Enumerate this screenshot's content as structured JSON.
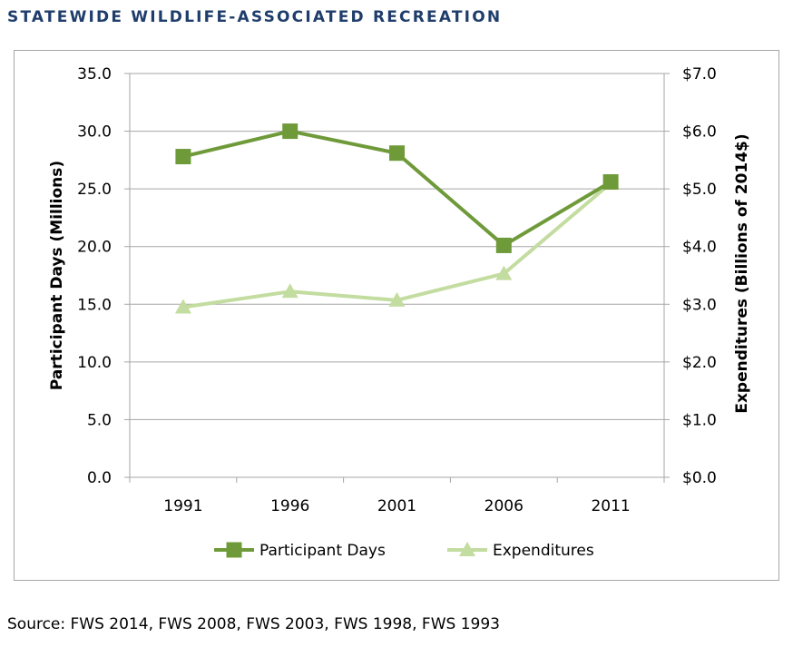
{
  "heading": "STATEWIDE WILDLIFE-ASSOCIATED RECREATION",
  "source": "Source: FWS 2014, FWS 2008, FWS 2003, FWS 1998, FWS 1993",
  "chart_data": {
    "type": "line",
    "title": "",
    "categories": [
      "1991",
      "1996",
      "2001",
      "2006",
      "2011"
    ],
    "ylabel": "Participant Days (Millions)",
    "y2label": "Expenditures (Billions of 2014$)",
    "ylim": [
      0,
      35
    ],
    "y2lim": [
      0,
      7
    ],
    "yticks": [
      "0.0",
      "5.0",
      "10.0",
      "15.0",
      "20.0",
      "25.0",
      "30.0",
      "35.0"
    ],
    "y2ticks": [
      "$0.0",
      "$1.0",
      "$2.0",
      "$3.0",
      "$4.0",
      "$5.0",
      "$6.0",
      "$7.0"
    ],
    "grid": true,
    "legend_position": "bottom",
    "series": [
      {
        "name": "Participant Days",
        "axis": "left",
        "marker": "square",
        "color": "#6f9a3a",
        "values": [
          27.8,
          30.0,
          28.1,
          20.1,
          25.6
        ]
      },
      {
        "name": "Expenditures",
        "axis": "right",
        "marker": "triangle",
        "color": "#c3dca0",
        "values": [
          2.95,
          3.22,
          3.07,
          3.53,
          5.1
        ]
      }
    ]
  }
}
